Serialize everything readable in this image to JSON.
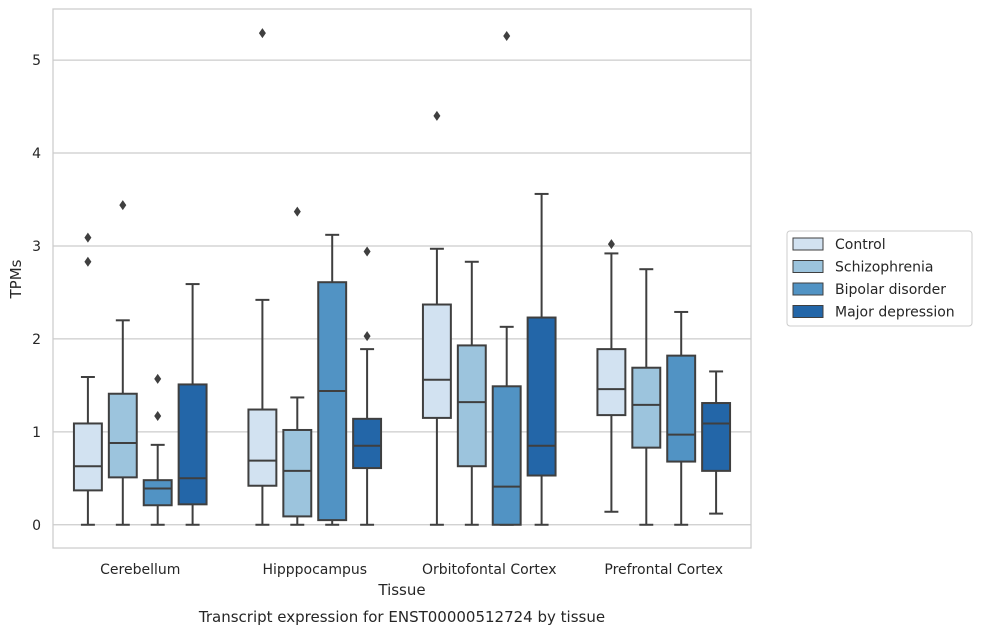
{
  "chart_data": {
    "type": "boxplot",
    "caption": "Transcript expression for ENST00000512724 by tissue",
    "xlabel": "Tissue",
    "ylabel": "TPMs",
    "ylim": [
      -0.25,
      5.55
    ],
    "yticks": [
      0,
      1,
      2,
      3,
      4,
      5
    ],
    "grid": "horizontal",
    "legend_position": "right",
    "categories": [
      "Cerebellum",
      "Hipppocampus",
      "Orbitofontal Cortex",
      "Prefrontal Cortex"
    ],
    "series": [
      {
        "name": "Control",
        "color": "#d2e2f1",
        "boxes": [
          {
            "whislo": 0.0,
            "q1": 0.37,
            "median": 0.63,
            "q3": 1.09,
            "whishi": 1.59,
            "fliers": [
              2.83,
              3.09
            ]
          },
          {
            "whislo": 0.0,
            "q1": 0.42,
            "median": 0.69,
            "q3": 1.24,
            "whishi": 2.42,
            "fliers": [
              5.29
            ]
          },
          {
            "whislo": 0.0,
            "q1": 1.15,
            "median": 1.56,
            "q3": 2.37,
            "whishi": 2.97,
            "fliers": [
              4.4
            ]
          },
          {
            "whislo": 0.14,
            "q1": 1.18,
            "median": 1.46,
            "q3": 1.89,
            "whishi": 2.92,
            "fliers": [
              3.02
            ]
          }
        ]
      },
      {
        "name": "Schizophrenia",
        "color": "#9cc4dd",
        "boxes": [
          {
            "whislo": 0.0,
            "q1": 0.51,
            "median": 0.88,
            "q3": 1.41,
            "whishi": 2.2,
            "fliers": [
              3.44
            ]
          },
          {
            "whislo": 0.0,
            "q1": 0.09,
            "median": 0.58,
            "q3": 1.02,
            "whishi": 1.37,
            "fliers": [
              3.37
            ]
          },
          {
            "whislo": 0.0,
            "q1": 0.63,
            "median": 1.32,
            "q3": 1.93,
            "whishi": 2.83,
            "fliers": []
          },
          {
            "whislo": 0.0,
            "q1": 0.83,
            "median": 1.29,
            "q3": 1.69,
            "whishi": 2.75,
            "fliers": []
          }
        ]
      },
      {
        "name": "Bipolar disorder",
        "color": "#5193c4",
        "boxes": [
          {
            "whislo": 0.0,
            "q1": 0.21,
            "median": 0.39,
            "q3": 0.48,
            "whishi": 0.86,
            "fliers": [
              1.17,
              1.57
            ]
          },
          {
            "whislo": 0.0,
            "q1": 0.05,
            "median": 1.44,
            "q3": 2.61,
            "whishi": 3.12,
            "fliers": []
          },
          {
            "whislo": 0.0,
            "q1": 0.0,
            "median": 0.41,
            "q3": 1.49,
            "whishi": 2.13,
            "fliers": [
              5.26
            ]
          },
          {
            "whislo": 0.0,
            "q1": 0.68,
            "median": 0.97,
            "q3": 1.82,
            "whishi": 2.29,
            "fliers": []
          }
        ]
      },
      {
        "name": "Major depression",
        "color": "#2366a8",
        "boxes": [
          {
            "whislo": 0.0,
            "q1": 0.22,
            "median": 0.5,
            "q3": 1.51,
            "whishi": 2.59,
            "fliers": []
          },
          {
            "whislo": 0.0,
            "q1": 0.61,
            "median": 0.85,
            "q3": 1.14,
            "whishi": 1.89,
            "fliers": [
              2.03,
              2.94
            ]
          },
          {
            "whislo": 0.0,
            "q1": 0.53,
            "median": 0.85,
            "q3": 2.23,
            "whishi": 3.56,
            "fliers": []
          },
          {
            "whislo": 0.12,
            "q1": 0.58,
            "median": 1.09,
            "q3": 1.31,
            "whishi": 1.65,
            "fliers": []
          }
        ]
      }
    ]
  }
}
